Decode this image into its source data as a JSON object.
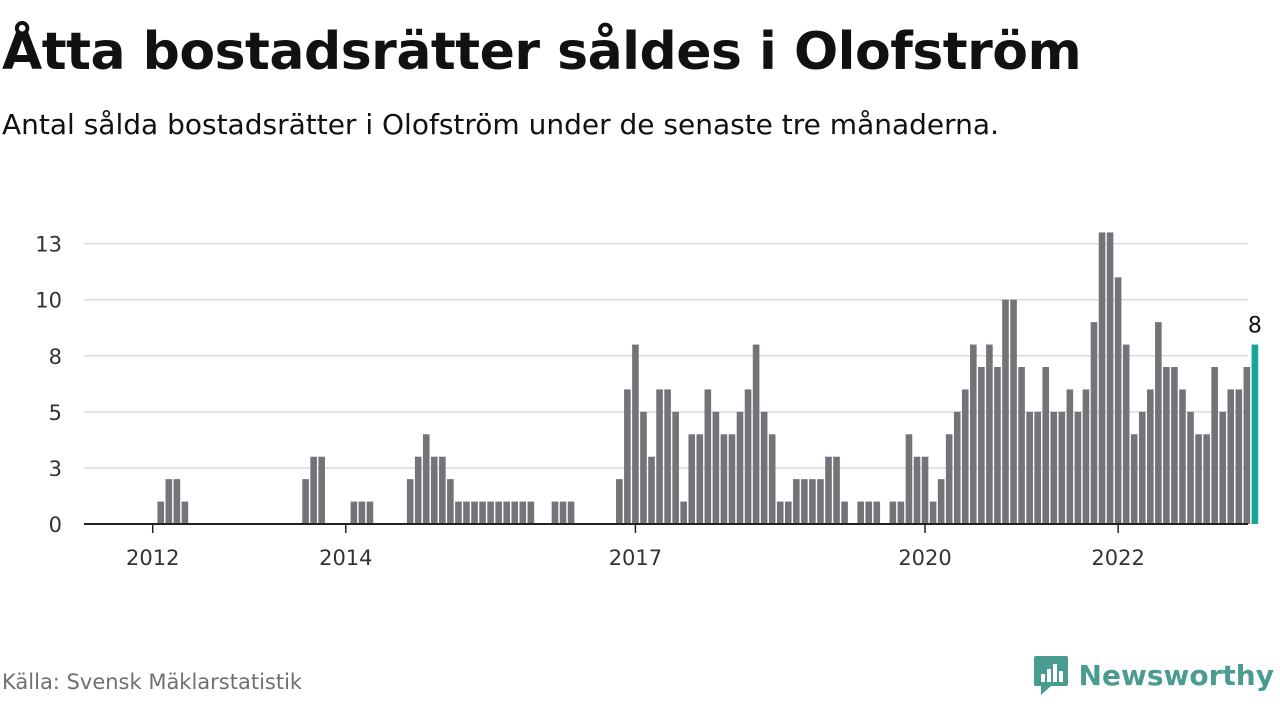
{
  "title": "Åtta bostadsrätter såldes i Olofström",
  "subtitle": "Antal sålda bostadsrätter i Olofström under de senaste tre månaderna.",
  "source": "Källa: Svensk Mäklarstatistik",
  "brand": {
    "name": "Newsworthy",
    "logo_icon": "newsworthy-logo-icon",
    "color": "#4a9b91"
  },
  "chart_data": {
    "type": "bar",
    "title": "",
    "xlabel": "",
    "ylabel": "",
    "ylim": [
      0,
      14
    ],
    "grid": true,
    "y_ticks": [
      0,
      2.5,
      5,
      7.5,
      10,
      12.5
    ],
    "y_tick_labels": [
      "0",
      "3",
      "5",
      "8",
      "10",
      "13"
    ],
    "x_ticks": [
      {
        "label": "2012",
        "month": "2012-01"
      },
      {
        "label": "2014",
        "month": "2014-01"
      },
      {
        "label": "2017",
        "month": "2017-01"
      },
      {
        "label": "2020",
        "month": "2020-01"
      },
      {
        "label": "2022",
        "month": "2022-01"
      }
    ],
    "bar_color": "#74737a",
    "highlight_color": "#16a59a",
    "highlight_label": "8",
    "series": [
      {
        "start_month": "2011-08",
        "values": [
          0,
          0,
          0,
          0,
          0,
          0,
          1,
          2,
          2,
          1,
          0,
          0,
          0,
          0,
          0,
          0,
          0,
          0,
          0,
          0,
          0,
          0,
          0,
          0,
          2,
          3,
          3,
          0,
          0,
          0,
          1,
          1,
          1,
          0,
          0,
          0,
          0,
          2,
          3,
          4,
          3,
          3,
          2,
          1,
          1,
          1,
          1,
          1,
          1,
          1,
          1,
          1,
          1,
          0,
          0,
          1,
          1,
          1,
          0,
          0,
          0,
          0,
          0,
          2,
          6,
          8,
          5,
          3,
          6,
          6,
          5,
          1,
          4,
          4,
          6,
          5,
          4,
          4,
          5,
          6,
          8,
          5,
          4,
          1,
          1,
          2,
          2,
          2,
          2,
          3,
          3,
          1,
          0,
          1,
          1,
          1,
          0,
          1,
          1,
          4,
          3,
          3,
          1,
          2,
          4,
          5,
          6,
          8,
          7,
          8,
          7,
          10,
          10,
          7,
          5,
          5,
          7,
          5,
          5,
          6,
          5,
          6,
          9,
          13,
          13,
          11,
          8,
          4,
          5,
          6,
          9,
          7,
          7,
          6,
          5,
          4,
          4,
          7,
          5,
          6,
          6,
          7,
          8
        ]
      }
    ]
  }
}
